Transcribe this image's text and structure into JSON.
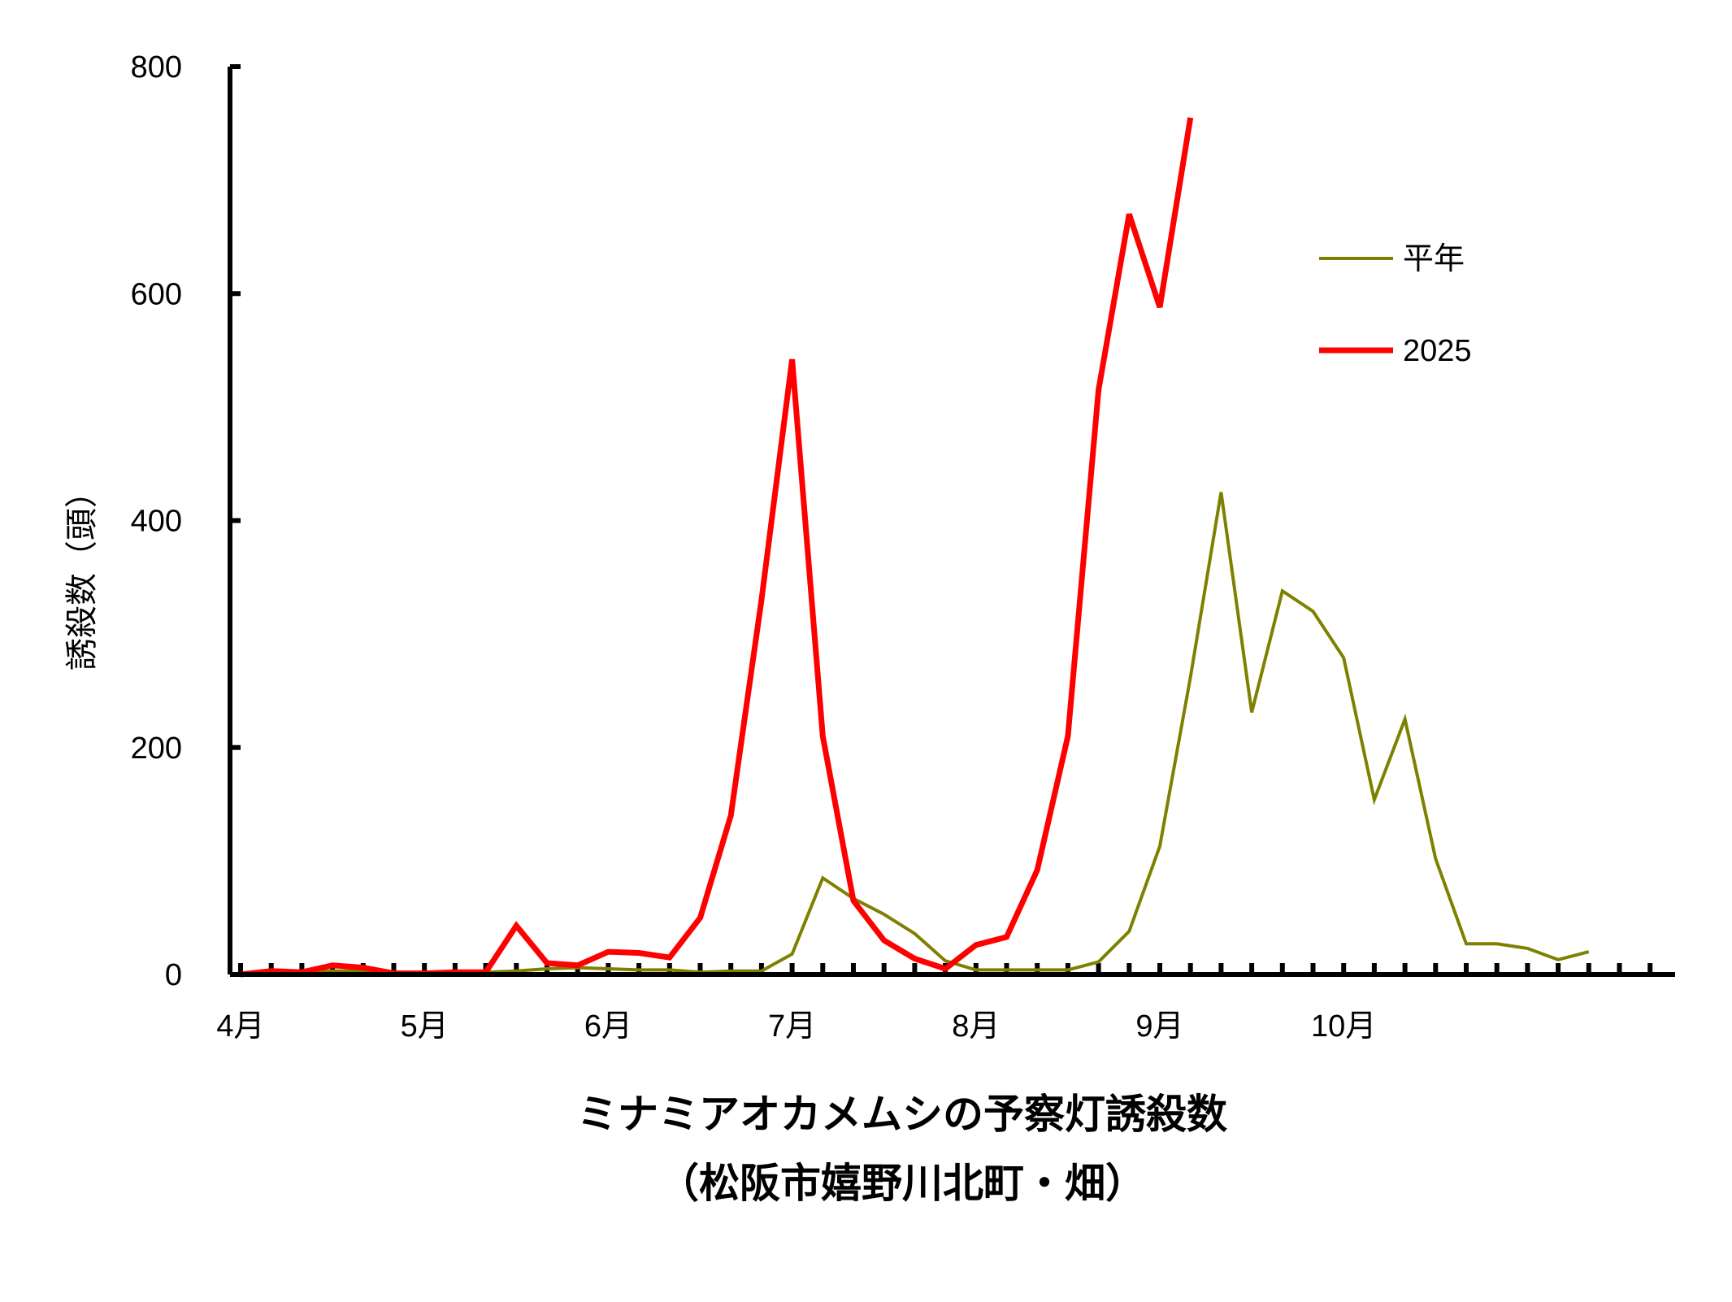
{
  "chart_data": {
    "type": "line",
    "title": "ミナミアオカメムシの予察灯誘殺数",
    "subtitle": "（松阪市嬉野川北町・畑）",
    "ylabel": "誘殺数（頭）",
    "xlabel": "",
    "ylim": [
      0,
      800
    ],
    "yticks": [
      "0",
      "200",
      "400",
      "600",
      "800"
    ],
    "month_labels": [
      "4月",
      "5月",
      "6月",
      "7月",
      "8月",
      "9月",
      "10月"
    ],
    "legend_position": "top-right",
    "grid": false,
    "x_note": "x = five-day period index starting at 4月 (6 periods per month)",
    "series": [
      {
        "name": "平年",
        "color": "#808000",
        "values": [
          1,
          2,
          2,
          3,
          3,
          2,
          2,
          2,
          2,
          3,
          5,
          6,
          5,
          4,
          4,
          2,
          3,
          3,
          18,
          85,
          67,
          53,
          36,
          12,
          4,
          4,
          4,
          4,
          11,
          38,
          113,
          262,
          425,
          231,
          338,
          320,
          279,
          154,
          225,
          102,
          27,
          27,
          23,
          13,
          20
        ]
      },
      {
        "name": "2025",
        "color": "#ff0000",
        "values": [
          0,
          3,
          2,
          8,
          6,
          1,
          1,
          2,
          2,
          43,
          10,
          8,
          20,
          19,
          15,
          50,
          140,
          330,
          542,
          210,
          65,
          30,
          14,
          5,
          26,
          33,
          92,
          210,
          515,
          670,
          588,
          755
        ]
      }
    ]
  }
}
